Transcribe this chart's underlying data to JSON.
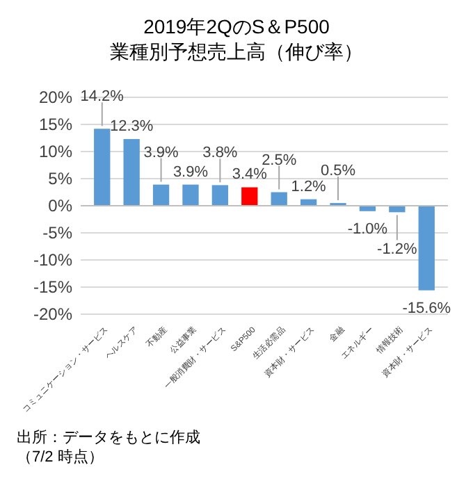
{
  "chart_data": {
    "type": "bar",
    "title": "2019年2QのS＆P500",
    "subtitle": "業種別予想売上高（伸び率）",
    "categories": [
      "コミュニケーション・サービス",
      "ヘルスケア",
      "不動産",
      "公益事業",
      "一般消費財・サービス",
      "S&P500",
      "生活必需品",
      "資本財・サービス",
      "金融",
      "エネルギー",
      "情報技術",
      "資本財・サービス"
    ],
    "values": [
      14.2,
      12.3,
      3.9,
      3.9,
      3.8,
      3.4,
      2.5,
      1.2,
      0.5,
      -1.0,
      -1.2,
      -15.6
    ],
    "colors": [
      "#5b9bd5",
      "#5b9bd5",
      "#5b9bd5",
      "#5b9bd5",
      "#5b9bd5",
      "#ff0000",
      "#5b9bd5",
      "#5b9bd5",
      "#5b9bd5",
      "#5b9bd5",
      "#5b9bd5",
      "#5b9bd5"
    ],
    "value_labels": [
      "14.2%",
      "12.3%",
      "3.9%",
      "3.9%",
      "3.8%",
      "3.4%",
      "2.5%",
      "1.2%",
      "0.5%",
      "-1.0%",
      "-1.2%",
      "-15.6%"
    ],
    "ylim": [
      -20,
      20
    ],
    "yticks": [
      {
        "value": -20,
        "label": "-20%"
      },
      {
        "value": -15,
        "label": "-15%"
      },
      {
        "value": -10,
        "label": "-10%"
      },
      {
        "value": -5,
        "label": "-5%"
      },
      {
        "value": 0,
        "label": "0%"
      },
      {
        "value": 5,
        "label": "5%"
      },
      {
        "value": 10,
        "label": "10%"
      },
      {
        "value": 15,
        "label": "15%"
      },
      {
        "value": 20,
        "label": "20%"
      }
    ],
    "grid": "y",
    "annotations": [
      "出所：データをもとに作成",
      "（7/2 時点）"
    ]
  }
}
